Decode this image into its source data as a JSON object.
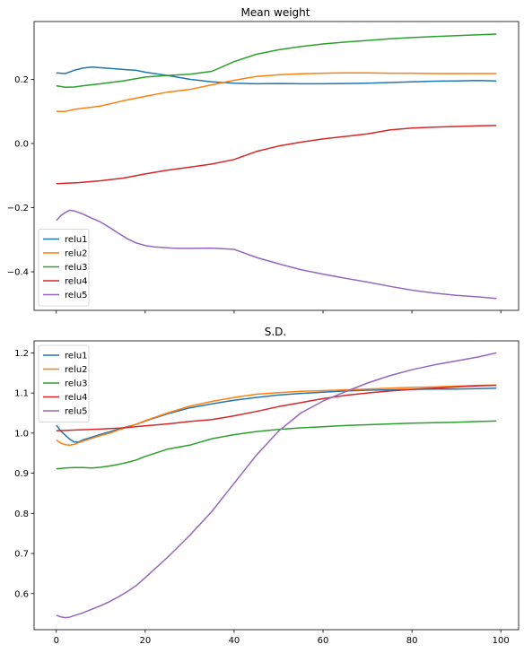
{
  "chart_data": [
    {
      "type": "line",
      "title": "Mean weight",
      "xlabel": "",
      "ylabel": "",
      "xlim": [
        -5,
        104
      ],
      "ylim": [
        -0.52,
        0.38
      ],
      "x_ticks": [
        0,
        20,
        40,
        60,
        80,
        100
      ],
      "x_tick_labels_shown": false,
      "y_ticks": [
        -0.4,
        -0.2,
        0.0,
        0.2
      ],
      "y_tick_labels": [
        "−0.4",
        "−0.2",
        "0.0",
        "0.2"
      ],
      "grid": false,
      "legend_position": "lower left",
      "series": [
        {
          "name": "relu1",
          "color": "#1f77b4",
          "x": [
            0,
            2,
            4,
            6,
            8,
            10,
            12,
            14,
            16,
            18,
            20,
            25,
            30,
            35,
            40,
            45,
            50,
            55,
            60,
            65,
            70,
            75,
            80,
            85,
            90,
            95,
            99
          ],
          "y": [
            0.22,
            0.218,
            0.228,
            0.235,
            0.238,
            0.236,
            0.234,
            0.232,
            0.23,
            0.228,
            0.222,
            0.212,
            0.2,
            0.192,
            0.188,
            0.186,
            0.187,
            0.186,
            0.186,
            0.187,
            0.188,
            0.19,
            0.192,
            0.194,
            0.195,
            0.196,
            0.195
          ]
        },
        {
          "name": "relu2",
          "color": "#ff7f0e",
          "x": [
            0,
            2,
            4,
            6,
            8,
            10,
            15,
            20,
            25,
            30,
            35,
            40,
            45,
            50,
            55,
            60,
            65,
            70,
            75,
            80,
            85,
            90,
            95,
            99
          ],
          "y": [
            0.1,
            0.1,
            0.106,
            0.11,
            0.113,
            0.117,
            0.133,
            0.147,
            0.16,
            0.168,
            0.183,
            0.197,
            0.209,
            0.214,
            0.217,
            0.219,
            0.22,
            0.22,
            0.219,
            0.219,
            0.218,
            0.218,
            0.218,
            0.218
          ]
        },
        {
          "name": "relu3",
          "color": "#2ca02c",
          "x": [
            0,
            2,
            4,
            6,
            8,
            10,
            15,
            20,
            25,
            30,
            35,
            40,
            45,
            50,
            55,
            60,
            65,
            70,
            75,
            80,
            85,
            90,
            95,
            99
          ],
          "y": [
            0.18,
            0.175,
            0.176,
            0.18,
            0.183,
            0.186,
            0.195,
            0.207,
            0.212,
            0.216,
            0.225,
            0.255,
            0.278,
            0.292,
            0.302,
            0.31,
            0.316,
            0.321,
            0.326,
            0.33,
            0.333,
            0.336,
            0.339,
            0.341
          ]
        },
        {
          "name": "relu4",
          "color": "#d62728",
          "x": [
            0,
            5,
            10,
            15,
            20,
            25,
            30,
            35,
            40,
            45,
            50,
            55,
            60,
            65,
            70,
            75,
            80,
            85,
            90,
            95,
            99
          ],
          "y": [
            -0.125,
            -0.122,
            -0.116,
            -0.108,
            -0.095,
            -0.083,
            -0.074,
            -0.064,
            -0.05,
            -0.025,
            -0.008,
            0.004,
            0.014,
            0.022,
            0.03,
            0.042,
            0.048,
            0.051,
            0.053,
            0.055,
            0.056
          ]
        },
        {
          "name": "relu5",
          "color": "#9467bd",
          "x": [
            0,
            1,
            2,
            3,
            4,
            6,
            8,
            10,
            12,
            14,
            16,
            18,
            20,
            22,
            24,
            26,
            28,
            30,
            35,
            40,
            42,
            45,
            50,
            55,
            60,
            65,
            70,
            75,
            80,
            85,
            90,
            95,
            99
          ],
          "y": [
            -0.24,
            -0.225,
            -0.215,
            -0.208,
            -0.21,
            -0.22,
            -0.233,
            -0.245,
            -0.262,
            -0.28,
            -0.297,
            -0.31,
            -0.318,
            -0.322,
            -0.324,
            -0.326,
            -0.327,
            -0.327,
            -0.326,
            -0.33,
            -0.34,
            -0.355,
            -0.375,
            -0.393,
            -0.407,
            -0.42,
            -0.432,
            -0.445,
            -0.457,
            -0.466,
            -0.473,
            -0.478,
            -0.483
          ]
        }
      ]
    },
    {
      "type": "line",
      "title": "S.D.",
      "xlabel": "",
      "ylabel": "",
      "xlim": [
        -5,
        104
      ],
      "ylim": [
        0.51,
        1.23
      ],
      "x_ticks": [
        0,
        20,
        40,
        60,
        80,
        100
      ],
      "x_tick_labels": [
        "0",
        "20",
        "40",
        "60",
        "80",
        "100"
      ],
      "y_ticks": [
        0.6,
        0.7,
        0.8,
        0.9,
        1.0,
        1.1,
        1.2
      ],
      "y_tick_labels": [
        "0.6",
        "0.7",
        "0.8",
        "0.9",
        "1.0",
        "1.1",
        "1.2"
      ],
      "grid": false,
      "legend_position": "upper left",
      "series": [
        {
          "name": "relu1",
          "color": "#1f77b4",
          "x": [
            0,
            1,
            2,
            3,
            4,
            5,
            6,
            8,
            10,
            12,
            14,
            16,
            18,
            20,
            25,
            30,
            35,
            40,
            45,
            50,
            55,
            60,
            65,
            70,
            75,
            80,
            85,
            90,
            95,
            99
          ],
          "y": [
            1.02,
            1.005,
            0.995,
            0.985,
            0.978,
            0.978,
            0.983,
            0.99,
            0.997,
            1.003,
            1.01,
            1.016,
            1.022,
            1.03,
            1.048,
            1.063,
            1.073,
            1.082,
            1.089,
            1.095,
            1.099,
            1.102,
            1.105,
            1.107,
            1.108,
            1.109,
            1.11,
            1.11,
            1.111,
            1.112
          ]
        },
        {
          "name": "relu2",
          "color": "#ff7f0e",
          "x": [
            0,
            1,
            2,
            3,
            4,
            5,
            6,
            8,
            10,
            12,
            14,
            16,
            18,
            20,
            25,
            30,
            35,
            40,
            45,
            50,
            55,
            60,
            65,
            70,
            75,
            80,
            85,
            90,
            95,
            99
          ],
          "y": [
            0.983,
            0.975,
            0.971,
            0.97,
            0.972,
            0.976,
            0.98,
            0.987,
            0.994,
            1.0,
            1.008,
            1.015,
            1.022,
            1.031,
            1.05,
            1.067,
            1.079,
            1.089,
            1.097,
            1.101,
            1.104,
            1.106,
            1.108,
            1.11,
            1.112,
            1.114,
            1.115,
            1.117,
            1.119,
            1.12
          ]
        },
        {
          "name": "relu3",
          "color": "#2ca02c",
          "x": [
            0,
            2,
            4,
            6,
            8,
            10,
            12,
            14,
            16,
            18,
            20,
            25,
            30,
            35,
            40,
            45,
            50,
            55,
            60,
            65,
            70,
            75,
            80,
            85,
            90,
            95,
            99
          ],
          "y": [
            0.911,
            0.913,
            0.914,
            0.914,
            0.913,
            0.915,
            0.918,
            0.922,
            0.927,
            0.933,
            0.942,
            0.96,
            0.97,
            0.986,
            0.996,
            1.004,
            1.009,
            1.013,
            1.016,
            1.019,
            1.021,
            1.023,
            1.025,
            1.026,
            1.027,
            1.029,
            1.03
          ]
        },
        {
          "name": "relu4",
          "color": "#d62728",
          "x": [
            0,
            5,
            10,
            15,
            20,
            25,
            30,
            35,
            40,
            45,
            50,
            55,
            60,
            65,
            70,
            75,
            80,
            85,
            90,
            95,
            99
          ],
          "y": [
            1.006,
            1.008,
            1.01,
            1.013,
            1.018,
            1.023,
            1.029,
            1.034,
            1.043,
            1.054,
            1.066,
            1.076,
            1.086,
            1.094,
            1.1,
            1.105,
            1.109,
            1.112,
            1.115,
            1.118,
            1.119
          ]
        },
        {
          "name": "relu5",
          "color": "#9467bd",
          "x": [
            0,
            1,
            2,
            3,
            4,
            6,
            8,
            10,
            12,
            14,
            16,
            18,
            20,
            25,
            30,
            35,
            40,
            45,
            50,
            55,
            60,
            65,
            70,
            75,
            80,
            85,
            90,
            95,
            99
          ],
          "y": [
            0.546,
            0.542,
            0.54,
            0.541,
            0.545,
            0.552,
            0.561,
            0.57,
            0.58,
            0.592,
            0.605,
            0.62,
            0.64,
            0.69,
            0.745,
            0.805,
            0.875,
            0.945,
            1.005,
            1.05,
            1.08,
            1.103,
            1.125,
            1.143,
            1.158,
            1.17,
            1.18,
            1.19,
            1.2
          ]
        }
      ]
    }
  ]
}
